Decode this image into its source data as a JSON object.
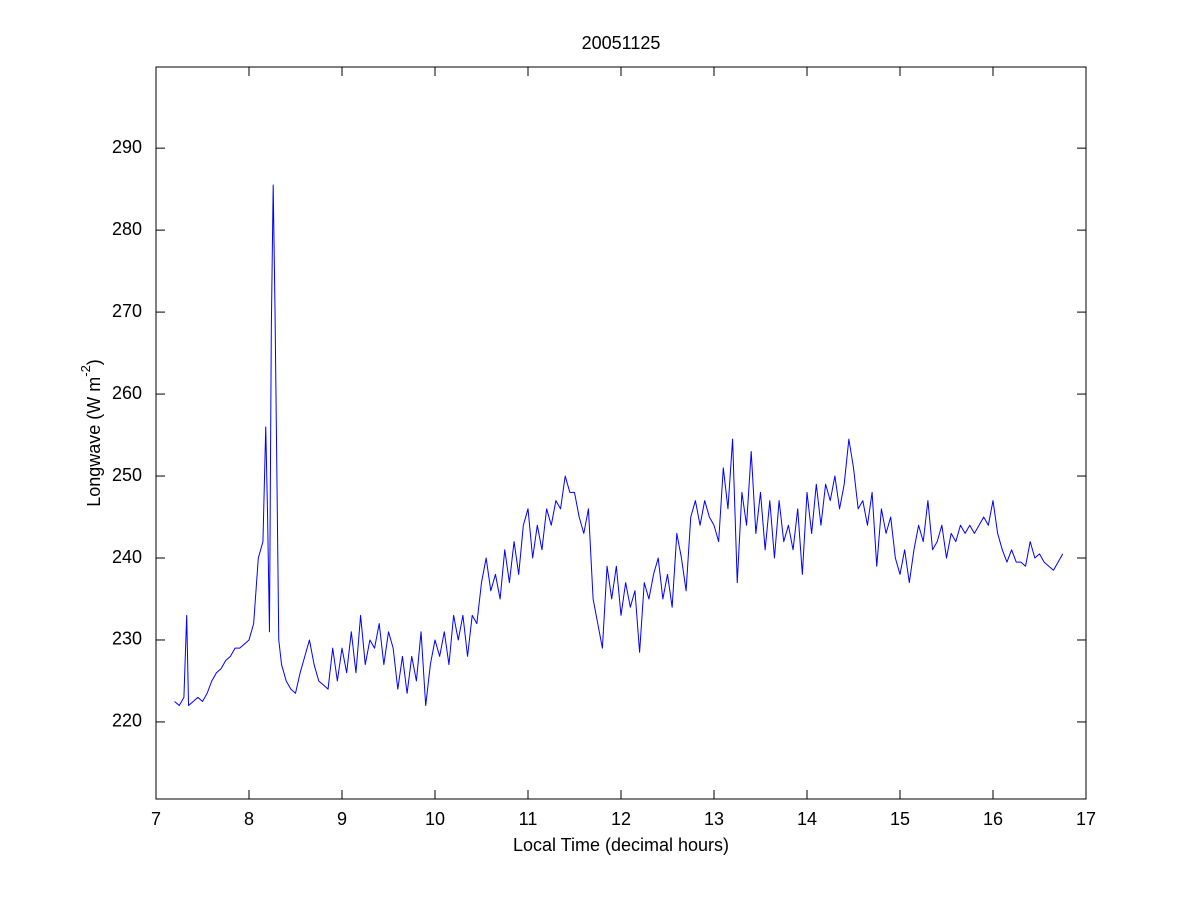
{
  "chart_data": {
    "type": "line",
    "title": "20051125",
    "x_label": "Local Time (decimal hours)",
    "y_label": "Longwave (W m",
    "y_label_superscript": "-2",
    "y_label_suffix": ")",
    "color": "#0000ff",
    "xlim": [
      7,
      17
    ],
    "xticks": [
      7,
      8,
      9,
      10,
      11,
      12,
      13,
      14,
      15,
      16,
      17
    ],
    "ylim": [
      210.6,
      299.9
    ],
    "yticks": [
      220,
      230,
      240,
      250,
      260,
      270,
      280,
      290
    ],
    "x": [
      7.2,
      7.25,
      7.3,
      7.33,
      7.35,
      7.4,
      7.45,
      7.5,
      7.55,
      7.6,
      7.65,
      7.7,
      7.75,
      7.8,
      7.85,
      7.9,
      7.95,
      8,
      8.05,
      8.1,
      8.15,
      8.18,
      8.2,
      8.22,
      8.24,
      8.26,
      8.28,
      8.3,
      8.32,
      8.35,
      8.4,
      8.45,
      8.5,
      8.55,
      8.6,
      8.65,
      8.7,
      8.75,
      8.8,
      8.85,
      8.9,
      8.95,
      9,
      9.05,
      9.1,
      9.15,
      9.2,
      9.25,
      9.3,
      9.35,
      9.4,
      9.45,
      9.5,
      9.55,
      9.6,
      9.65,
      9.7,
      9.75,
      9.8,
      9.85,
      9.9,
      9.95,
      10,
      10.05,
      10.1,
      10.15,
      10.2,
      10.25,
      10.3,
      10.35,
      10.4,
      10.45,
      10.5,
      10.55,
      10.6,
      10.65,
      10.7,
      10.75,
      10.8,
      10.85,
      10.9,
      10.95,
      11,
      11.05,
      11.1,
      11.15,
      11.2,
      11.25,
      11.3,
      11.35,
      11.4,
      11.45,
      11.5,
      11.55,
      11.6,
      11.65,
      11.7,
      11.75,
      11.8,
      11.85,
      11.9,
      11.95,
      12,
      12.05,
      12.1,
      12.15,
      12.2,
      12.25,
      12.3,
      12.35,
      12.4,
      12.45,
      12.5,
      12.55,
      12.6,
      12.65,
      12.7,
      12.75,
      12.8,
      12.85,
      12.9,
      12.95,
      13,
      13.05,
      13.1,
      13.15,
      13.2,
      13.25,
      13.3,
      13.35,
      13.4,
      13.45,
      13.5,
      13.55,
      13.6,
      13.65,
      13.7,
      13.75,
      13.8,
      13.85,
      13.9,
      13.95,
      14,
      14.05,
      14.1,
      14.15,
      14.2,
      14.25,
      14.3,
      14.35,
      14.4,
      14.45,
      14.5,
      14.55,
      14.6,
      14.65,
      14.7,
      14.75,
      14.8,
      14.85,
      14.9,
      14.95,
      15,
      15.05,
      15.1,
      15.15,
      15.2,
      15.25,
      15.3,
      15.35,
      15.4,
      15.45,
      15.5,
      15.55,
      15.6,
      15.65,
      15.7,
      15.75,
      15.8,
      15.85,
      15.9,
      15.95,
      16,
      16.05,
      16.1,
      16.15,
      16.2,
      16.25,
      16.3,
      16.35,
      16.4,
      16.45,
      16.5,
      16.55,
      16.6,
      16.65,
      16.7,
      16.75
    ],
    "values": [
      222.5,
      222,
      223,
      233,
      222,
      222.5,
      223,
      222.5,
      223.5,
      225,
      226,
      226.5,
      227.5,
      228,
      229,
      229,
      229.5,
      230,
      232,
      240,
      242,
      256,
      245,
      231,
      268,
      285.5,
      270,
      250,
      230,
      227,
      225,
      224,
      223.5,
      226,
      228,
      230,
      227,
      225,
      224.5,
      224,
      229,
      225,
      229,
      226,
      231,
      226,
      233,
      227,
      230,
      229,
      232,
      227,
      231,
      229,
      224,
      228,
      223.5,
      228,
      225,
      231,
      222,
      227,
      230,
      228,
      231,
      227,
      233,
      230,
      233,
      228,
      233,
      232,
      237,
      240,
      236,
      238,
      235,
      241,
      237,
      242,
      238,
      244,
      246,
      240,
      244,
      241,
      246,
      244,
      247,
      246,
      250,
      248,
      248,
      245,
      243,
      246,
      235,
      232,
      229,
      239,
      235,
      239,
      233,
      237,
      234,
      236,
      228.5,
      237,
      235,
      238,
      240,
      235,
      238,
      234,
      243,
      240,
      236,
      245,
      247,
      244,
      247,
      245,
      244,
      242,
      251,
      246,
      254.5,
      237,
      248,
      244,
      253,
      243,
      248,
      241,
      247,
      240,
      247,
      242,
      244,
      241,
      246,
      238,
      248,
      243,
      249,
      244,
      249,
      247,
      250,
      246,
      249,
      254.5,
      251,
      246,
      247,
      244,
      248,
      239,
      246,
      243,
      245,
      240,
      238,
      241,
      237,
      241,
      244,
      242,
      247,
      241,
      242,
      244,
      240,
      243,
      242,
      244,
      243,
      244,
      243,
      244,
      245,
      244,
      247,
      243,
      241,
      239.5,
      241,
      239.5,
      239.5,
      239,
      242,
      240,
      240.5,
      239.5,
      239,
      238.5,
      239.5,
      240.5
    ]
  }
}
